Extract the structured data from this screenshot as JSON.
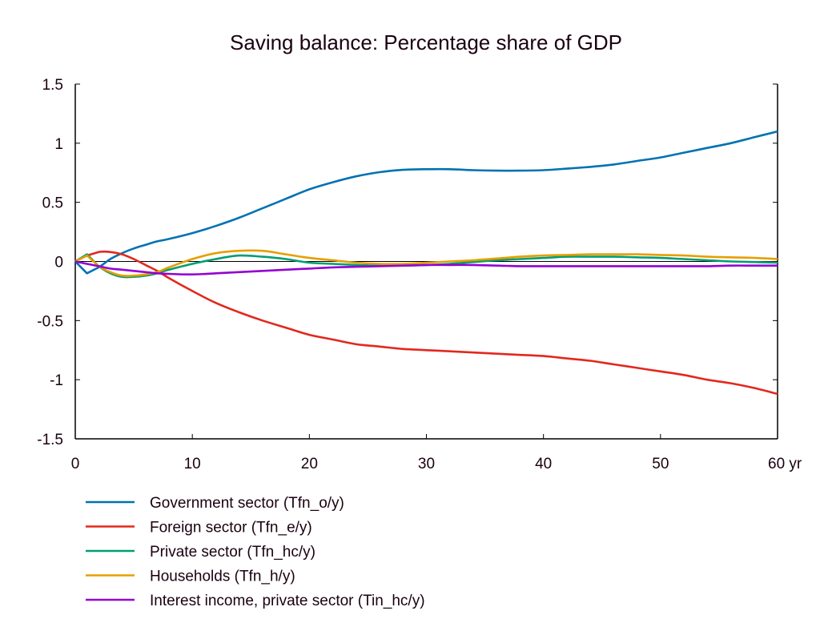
{
  "chart_data": {
    "type": "line",
    "title": "Saving balance: Percentage share of GDP",
    "xlabel": "",
    "ylabel": "",
    "x_unit_label": "yr",
    "xlim": [
      0,
      60
    ],
    "ylim": [
      -1.5,
      1.5
    ],
    "xticks": [
      0,
      10,
      20,
      30,
      40,
      50,
      60
    ],
    "xtick_labels": [
      "0",
      "10",
      "20",
      "30",
      "40",
      "50",
      "60 yr"
    ],
    "yticks": [
      1.5,
      1,
      0.5,
      0,
      -0.5,
      -1,
      -1.5
    ],
    "ytick_labels": [
      "1.5",
      "1",
      "0.5",
      "0",
      "-0.5",
      "-1",
      "-1.5"
    ],
    "grid": false,
    "zero_line": true,
    "legend_position": "bottom-left",
    "x": [
      0,
      1,
      2,
      3,
      4,
      5,
      6,
      7,
      8,
      10,
      12,
      14,
      16,
      18,
      20,
      22,
      24,
      26,
      28,
      30,
      32,
      34,
      36,
      38,
      40,
      42,
      44,
      46,
      48,
      50,
      52,
      54,
      56,
      58,
      60
    ],
    "series": [
      {
        "name": "Government sector (Tfn_o/y)",
        "color": "#0072b2",
        "values": [
          0,
          -0.1,
          -0.05,
          0.02,
          0.07,
          0.11,
          0.14,
          0.17,
          0.19,
          0.24,
          0.3,
          0.37,
          0.45,
          0.53,
          0.61,
          0.67,
          0.72,
          0.755,
          0.775,
          0.78,
          0.78,
          0.772,
          0.768,
          0.768,
          0.772,
          0.785,
          0.8,
          0.82,
          0.85,
          0.88,
          0.92,
          0.96,
          1.0,
          1.05,
          1.1
        ]
      },
      {
        "name": "Foreign sector (Tfn_e/y)",
        "color": "#e2281e",
        "values": [
          0,
          0.05,
          0.08,
          0.08,
          0.06,
          0.02,
          -0.03,
          -0.08,
          -0.14,
          -0.25,
          -0.35,
          -0.43,
          -0.5,
          -0.56,
          -0.62,
          -0.66,
          -0.7,
          -0.72,
          -0.74,
          -0.75,
          -0.76,
          -0.77,
          -0.78,
          -0.79,
          -0.8,
          -0.82,
          -0.84,
          -0.87,
          -0.9,
          -0.93,
          -0.96,
          -1.0,
          -1.03,
          -1.07,
          -1.12
        ]
      },
      {
        "name": "Private sector (Tfn_hc/y)",
        "color": "#009e73",
        "values": [
          0,
          0.06,
          -0.04,
          -0.1,
          -0.13,
          -0.13,
          -0.12,
          -0.1,
          -0.07,
          -0.02,
          0.02,
          0.05,
          0.04,
          0.02,
          -0.01,
          -0.02,
          -0.03,
          -0.035,
          -0.035,
          -0.03,
          -0.02,
          -0.005,
          0.01,
          0.02,
          0.03,
          0.04,
          0.04,
          0.04,
          0.035,
          0.03,
          0.02,
          0.01,
          0.0,
          -0.005,
          -0.01
        ]
      },
      {
        "name": "Households (Tfn_h/y)",
        "color": "#e69f00",
        "values": [
          0,
          0.05,
          -0.04,
          -0.09,
          -0.12,
          -0.12,
          -0.11,
          -0.09,
          -0.05,
          0.02,
          0.07,
          0.09,
          0.09,
          0.06,
          0.03,
          0.01,
          -0.01,
          -0.02,
          -0.02,
          -0.01,
          0.0,
          0.01,
          0.025,
          0.04,
          0.05,
          0.055,
          0.06,
          0.06,
          0.06,
          0.055,
          0.05,
          0.04,
          0.035,
          0.03,
          0.02
        ]
      },
      {
        "name": "Interest income, private sector (Tin_hc/y)",
        "color": "#9400d3",
        "values": [
          0,
          -0.02,
          -0.04,
          -0.06,
          -0.07,
          -0.08,
          -0.09,
          -0.1,
          -0.105,
          -0.11,
          -0.1,
          -0.09,
          -0.08,
          -0.07,
          -0.06,
          -0.05,
          -0.045,
          -0.04,
          -0.035,
          -0.03,
          -0.03,
          -0.03,
          -0.035,
          -0.04,
          -0.04,
          -0.04,
          -0.04,
          -0.04,
          -0.04,
          -0.04,
          -0.04,
          -0.04,
          -0.035,
          -0.035,
          -0.035
        ]
      }
    ]
  }
}
